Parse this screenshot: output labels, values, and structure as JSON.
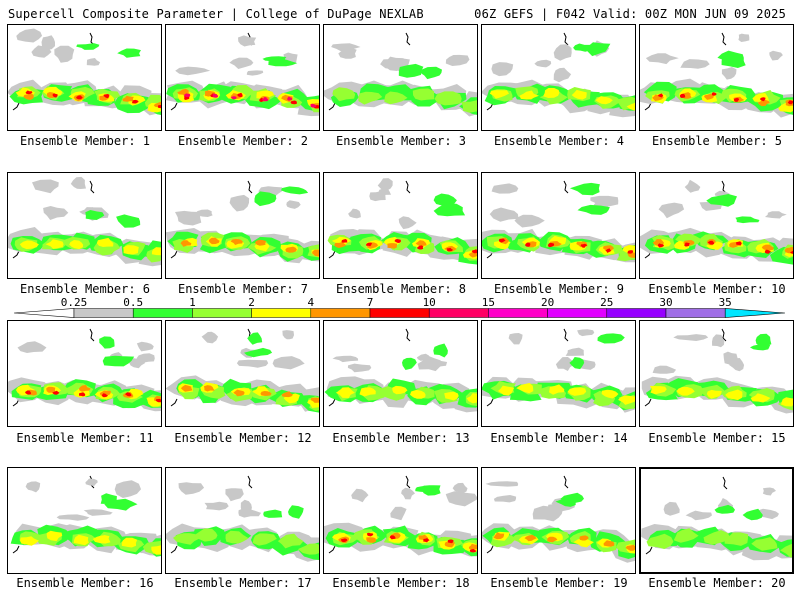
{
  "header": {
    "left": "Supercell Composite Parameter | College of DuPage NEXLAB",
    "right": "06Z GEFS | F042 Valid: 00Z MON JUN 09 2025"
  },
  "members": [
    {
      "caption": "Ensemble Member: 1",
      "intensity": 0.85
    },
    {
      "caption": "Ensemble Member: 2",
      "intensity": 0.95
    },
    {
      "caption": "Ensemble Member: 3",
      "intensity": 0.45
    },
    {
      "caption": "Ensemble Member: 4",
      "intensity": 0.5
    },
    {
      "caption": "Ensemble Member: 5",
      "intensity": 0.8
    },
    {
      "caption": "Ensemble Member: 6",
      "intensity": 0.55
    },
    {
      "caption": "Ensemble Member: 7",
      "intensity": 0.75
    },
    {
      "caption": "Ensemble Member: 8",
      "intensity": 0.8
    },
    {
      "caption": "Ensemble Member: 9",
      "intensity": 0.85
    },
    {
      "caption": "Ensemble Member: 10",
      "intensity": 0.8
    },
    {
      "caption": "Ensemble Member: 11",
      "intensity": 0.8
    },
    {
      "caption": "Ensemble Member: 12",
      "intensity": 0.65
    },
    {
      "caption": "Ensemble Member: 13",
      "intensity": 0.6
    },
    {
      "caption": "Ensemble Member: 14",
      "intensity": 0.6
    },
    {
      "caption": "Ensemble Member: 15",
      "intensity": 0.55
    },
    {
      "caption": "Ensemble Member: 16",
      "intensity": 0.6
    },
    {
      "caption": "Ensemble Member: 17",
      "intensity": 0.45
    },
    {
      "caption": "Ensemble Member: 18",
      "intensity": 0.85
    },
    {
      "caption": "Ensemble Member: 19",
      "intensity": 0.75
    },
    {
      "caption": "Ensemble Member: 20",
      "intensity": 0.4
    }
  ],
  "selected_member": 20,
  "colorbar": {
    "levels": [
      "0.25",
      "0.5",
      "1",
      "2",
      "4",
      "7",
      "10",
      "15",
      "20",
      "25",
      "30",
      "35"
    ],
    "colors": [
      "#c8c8c8",
      "#32ff32",
      "#96ff32",
      "#ffff00",
      "#ff9600",
      "#ff0000",
      "#ff0064",
      "#ff00c8",
      "#e100ff",
      "#9600ff",
      "#a06ee6",
      "#00e6ff"
    ]
  }
}
